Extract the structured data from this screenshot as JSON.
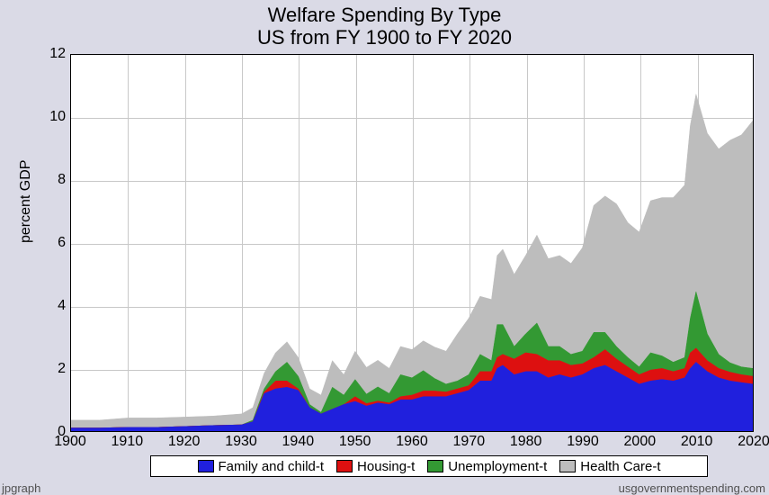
{
  "title": "Welfare Spending By Type",
  "subtitle": "US from FY 1900 to FY 2020",
  "y_axis_label": "percent GDP",
  "credit_left": "jpgraph",
  "credit_right": "usgovernmentspending.com",
  "chart": {
    "type": "stacked-area",
    "background_color": "#ffffff",
    "page_background": "#dadae6",
    "grid_color": "#c8c8c8",
    "border_color": "#000000",
    "xlim": [
      1900,
      2020
    ],
    "ylim": [
      0,
      12
    ],
    "xtick_step": 10,
    "ytick_step": 2,
    "x_ticks": [
      1900,
      1910,
      1920,
      1930,
      1940,
      1950,
      1960,
      1970,
      1980,
      1990,
      2000,
      2010,
      2020
    ],
    "y_ticks": [
      0,
      2,
      4,
      6,
      8,
      10,
      12
    ],
    "title_fontsize": 22,
    "axis_label_fontsize": 16,
    "tick_fontsize": 16,
    "legend_fontsize": 15,
    "years": [
      1900,
      1905,
      1910,
      1915,
      1920,
      1925,
      1930,
      1932,
      1934,
      1936,
      1938,
      1940,
      1942,
      1944,
      1946,
      1948,
      1950,
      1952,
      1954,
      1956,
      1958,
      1960,
      1962,
      1964,
      1966,
      1968,
      1970,
      1972,
      1974,
      1975,
      1976,
      1978,
      1980,
      1982,
      1984,
      1986,
      1988,
      1990,
      1992,
      1994,
      1996,
      1998,
      2000,
      2002,
      2004,
      2006,
      2008,
      2009,
      2010,
      2012,
      2014,
      2016,
      2018,
      2020
    ],
    "series": [
      {
        "name": "Family and child-t",
        "color": "#2020dd",
        "values": [
          0.1,
          0.1,
          0.12,
          0.12,
          0.15,
          0.18,
          0.2,
          0.3,
          1.2,
          1.35,
          1.4,
          1.3,
          0.75,
          0.55,
          0.7,
          0.85,
          0.95,
          0.8,
          0.9,
          0.85,
          1.0,
          1.0,
          1.1,
          1.1,
          1.1,
          1.2,
          1.3,
          1.6,
          1.6,
          2.0,
          2.1,
          1.8,
          1.9,
          1.9,
          1.7,
          1.8,
          1.7,
          1.8,
          2.0,
          2.1,
          1.9,
          1.7,
          1.5,
          1.6,
          1.65,
          1.6,
          1.7,
          2.0,
          2.2,
          1.9,
          1.7,
          1.6,
          1.55,
          1.5
        ]
      },
      {
        "name": "Housing-t",
        "color": "#dd1010",
        "values": [
          0.0,
          0.0,
          0.0,
          0.0,
          0.0,
          0.0,
          0.0,
          0.0,
          0.05,
          0.25,
          0.2,
          0.05,
          0.0,
          0.0,
          0.0,
          0.0,
          0.15,
          0.08,
          0.06,
          0.05,
          0.1,
          0.15,
          0.18,
          0.18,
          0.15,
          0.15,
          0.15,
          0.3,
          0.3,
          0.35,
          0.35,
          0.5,
          0.6,
          0.55,
          0.55,
          0.45,
          0.4,
          0.35,
          0.35,
          0.5,
          0.4,
          0.35,
          0.3,
          0.35,
          0.35,
          0.3,
          0.3,
          0.5,
          0.45,
          0.35,
          0.3,
          0.28,
          0.25,
          0.25
        ]
      },
      {
        "name": "Unemployment-t",
        "color": "#339933",
        "values": [
          0.0,
          0.0,
          0.0,
          0.0,
          0.0,
          0.0,
          0.0,
          0.05,
          0.1,
          0.3,
          0.6,
          0.4,
          0.1,
          0.05,
          0.7,
          0.3,
          0.55,
          0.3,
          0.45,
          0.3,
          0.7,
          0.55,
          0.65,
          0.4,
          0.25,
          0.25,
          0.35,
          0.55,
          0.35,
          1.05,
          0.95,
          0.4,
          0.6,
          1.0,
          0.45,
          0.45,
          0.35,
          0.4,
          0.8,
          0.55,
          0.4,
          0.3,
          0.25,
          0.55,
          0.4,
          0.3,
          0.35,
          1.1,
          1.8,
          0.85,
          0.45,
          0.3,
          0.25,
          0.25
        ]
      },
      {
        "name": "Health Care-t",
        "color": "#bdbdbd",
        "values": [
          0.25,
          0.25,
          0.3,
          0.3,
          0.3,
          0.3,
          0.35,
          0.4,
          0.5,
          0.6,
          0.65,
          0.6,
          0.5,
          0.55,
          0.85,
          0.65,
          0.9,
          0.85,
          0.85,
          0.8,
          0.9,
          0.9,
          0.95,
          1.0,
          1.05,
          1.5,
          1.8,
          1.85,
          1.95,
          2.2,
          2.4,
          2.3,
          2.5,
          2.8,
          2.8,
          2.9,
          2.9,
          3.3,
          4.05,
          4.35,
          4.55,
          4.3,
          4.3,
          4.85,
          5.05,
          5.25,
          5.5,
          6.15,
          6.3,
          6.4,
          6.55,
          7.1,
          7.4,
          7.9
        ]
      }
    ]
  },
  "legend": {
    "items": [
      {
        "label": "Family and child-t",
        "color": "#2020dd"
      },
      {
        "label": "Housing-t",
        "color": "#dd1010"
      },
      {
        "label": "Unemployment-t",
        "color": "#339933"
      },
      {
        "label": "Health Care-t",
        "color": "#bdbdbd"
      }
    ]
  }
}
